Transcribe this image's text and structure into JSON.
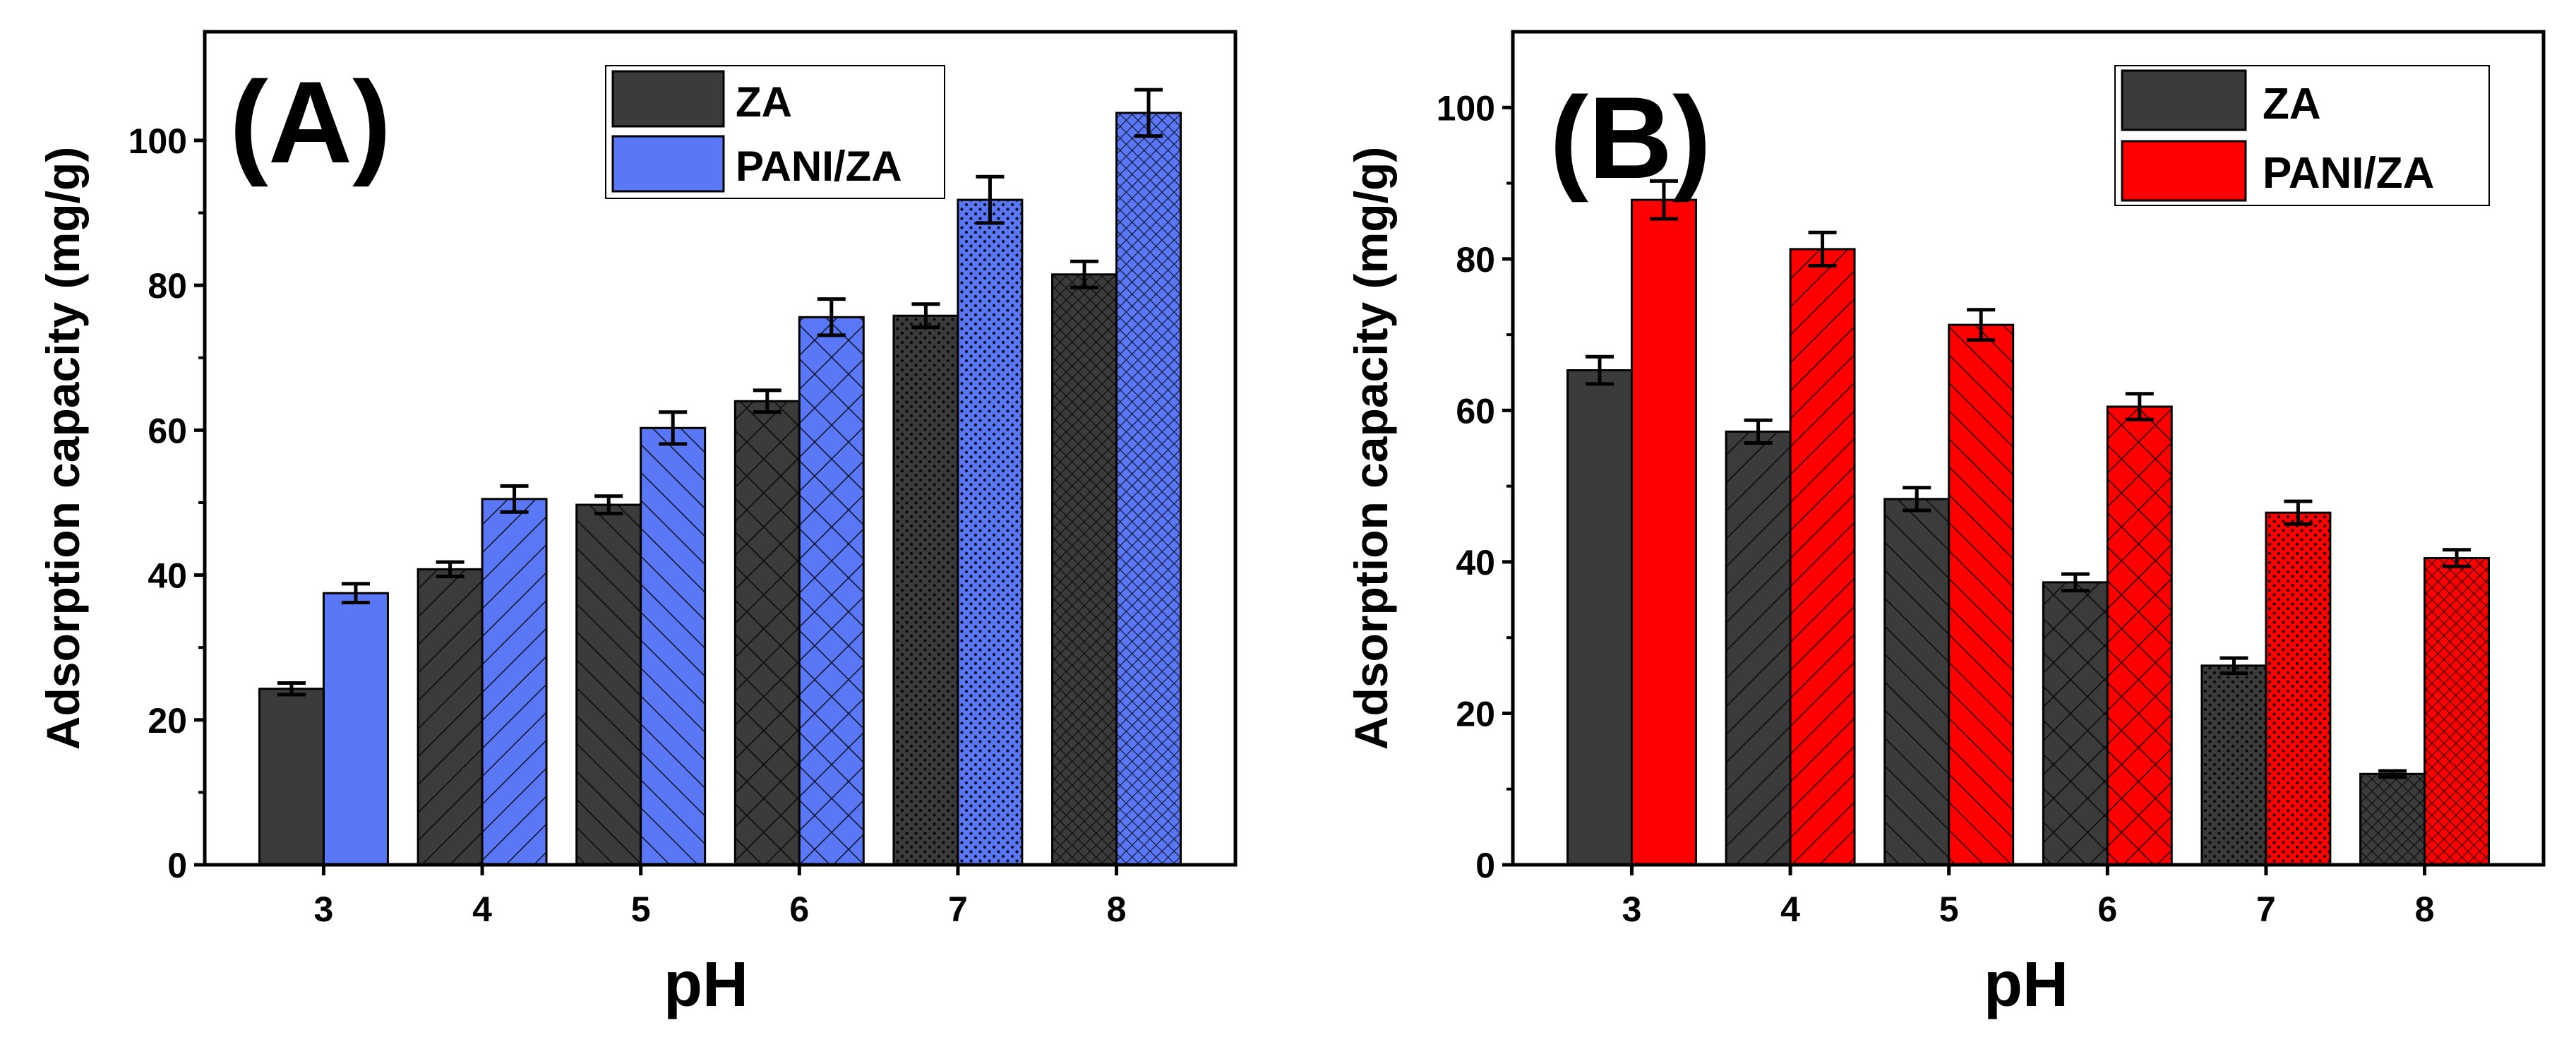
{
  "chart_data": [
    {
      "type": "bar",
      "panel_label": "(A)",
      "xlabel": "pH",
      "ylabel": "Adsorption capacity (mg/g)",
      "categories": [
        "3",
        "4",
        "5",
        "6",
        "7",
        "8"
      ],
      "ylim": [
        0,
        115
      ],
      "yticks": [
        "0",
        "20",
        "40",
        "60",
        "80",
        "100"
      ],
      "legend_position": "top-right",
      "series": [
        {
          "name": "ZA",
          "values": [
            24.3,
            40.8,
            49.7,
            64.0,
            75.8,
            81.5
          ],
          "errors": [
            0.8,
            1.0,
            1.2,
            1.5,
            1.6,
            1.8
          ],
          "color": "#3b3b3b"
        },
        {
          "name": "PANI/ZA",
          "values": [
            37.5,
            50.5,
            60.3,
            75.6,
            91.8,
            103.8
          ],
          "errors": [
            1.3,
            1.8,
            2.2,
            2.5,
            3.2,
            3.2
          ],
          "color": "#5a78f5"
        }
      ]
    },
    {
      "type": "bar",
      "panel_label": "(B)",
      "xlabel": "pH",
      "ylabel": "Adsorption capacity (mg/g)",
      "categories": [
        "3",
        "4",
        "5",
        "6",
        "7",
        "8"
      ],
      "ylim": [
        0,
        110
      ],
      "yticks": [
        "0",
        "20",
        "40",
        "60",
        "80",
        "100"
      ],
      "legend_position": "top-right",
      "series": [
        {
          "name": "ZA",
          "values": [
            65.3,
            57.2,
            48.3,
            37.3,
            26.3,
            12.0
          ],
          "errors": [
            1.8,
            1.5,
            1.5,
            1.1,
            1.0,
            0.4
          ],
          "color": "#3b3b3b"
        },
        {
          "name": "PANI/ZA",
          "values": [
            87.8,
            81.3,
            71.3,
            60.5,
            46.5,
            40.5
          ],
          "errors": [
            2.5,
            2.2,
            2.0,
            1.7,
            1.5,
            1.1
          ],
          "color": "#ff0000"
        }
      ]
    }
  ]
}
